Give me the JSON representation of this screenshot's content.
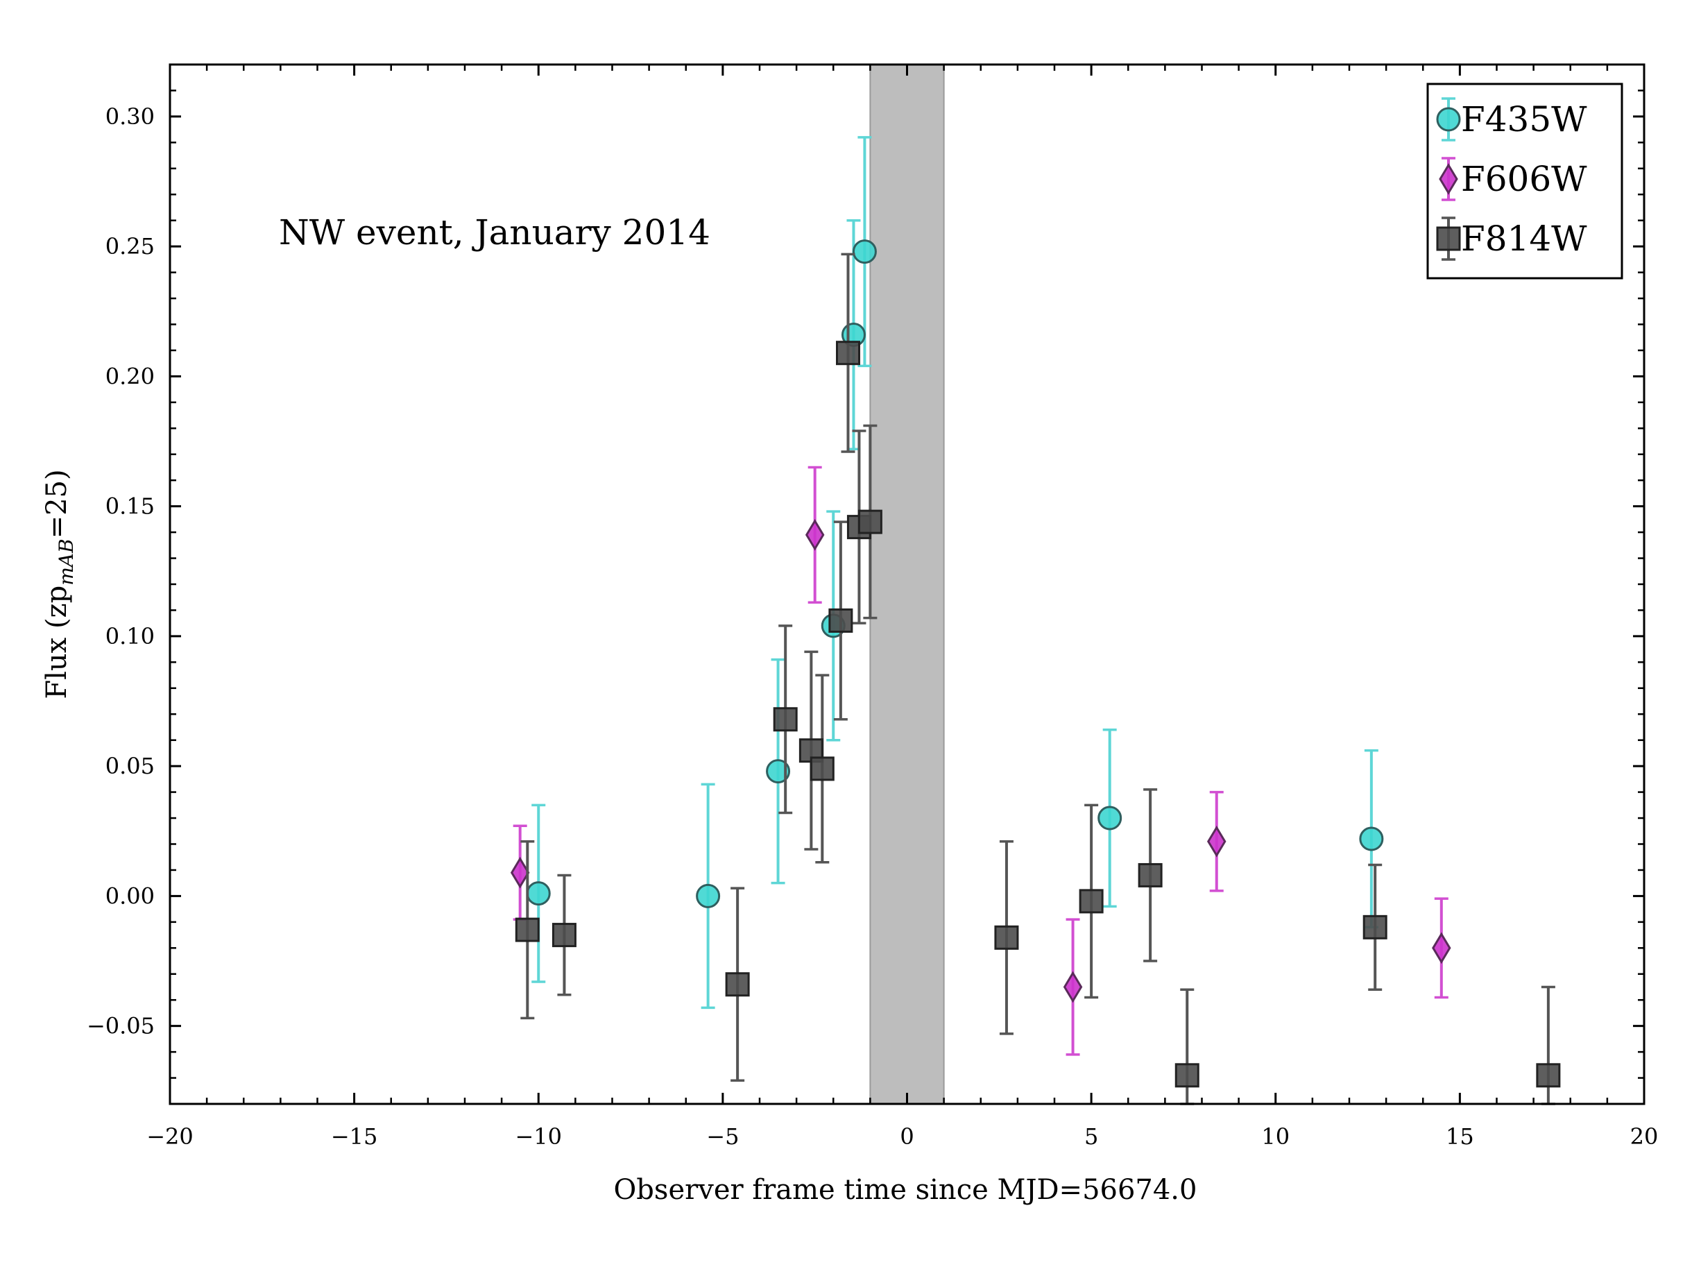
{
  "chart_data": {
    "type": "scatter",
    "title": "",
    "annotation": "NW event, January 2014",
    "xlabel": "Observer frame time since MJD=56674.0",
    "ylabel_main": "Flux (zp",
    "ylabel_sub": "mAB",
    "ylabel_tail": "=25)",
    "xlim": [
      -20,
      20
    ],
    "ylim": [
      -0.08,
      0.32
    ],
    "x_ticks": [
      -20,
      -15,
      -10,
      -5,
      0,
      5,
      10,
      15,
      20
    ],
    "x_tick_labels": [
      "−20",
      "−15",
      "−10",
      "−5",
      "0",
      "5",
      "10",
      "15",
      "20"
    ],
    "y_ticks": [
      -0.05,
      0.0,
      0.05,
      0.1,
      0.15,
      0.2,
      0.25,
      0.3
    ],
    "y_tick_labels": [
      "−0.05",
      "0.00",
      "0.05",
      "0.10",
      "0.15",
      "0.20",
      "0.25",
      "0.30"
    ],
    "grid": false,
    "legend_position": "top-right",
    "shaded_band": {
      "x_start": -1.0,
      "x_end": 1.0,
      "color": "#bdbdbd"
    },
    "series": [
      {
        "name": "F435W",
        "marker": "circle",
        "color": "#3dd6d0",
        "errcolor": "#5ed6d6",
        "points": [
          {
            "x": -10.0,
            "y": 0.001,
            "err": 0.034
          },
          {
            "x": -5.4,
            "y": 0.0,
            "err": 0.043
          },
          {
            "x": -3.5,
            "y": 0.048,
            "err": 0.043
          },
          {
            "x": -2.0,
            "y": 0.104,
            "err": 0.044
          },
          {
            "x": -1.45,
            "y": 0.216,
            "err": 0.044
          },
          {
            "x": -1.15,
            "y": 0.248,
            "err": 0.044
          },
          {
            "x": 5.5,
            "y": 0.03,
            "err": 0.034
          },
          {
            "x": 12.6,
            "y": 0.022,
            "err": 0.034
          }
        ]
      },
      {
        "name": "F606W",
        "marker": "diamond",
        "color": "#cc33cc",
        "errcolor": "#d24fd2",
        "points": [
          {
            "x": -10.5,
            "y": 0.009,
            "err": 0.018
          },
          {
            "x": -2.5,
            "y": 0.139,
            "err": 0.026
          },
          {
            "x": 4.5,
            "y": -0.035,
            "err": 0.026
          },
          {
            "x": 8.4,
            "y": 0.021,
            "err": 0.019
          },
          {
            "x": 14.5,
            "y": -0.02,
            "err": 0.019
          }
        ]
      },
      {
        "name": "F814W",
        "marker": "square",
        "color": "#4d4d4d",
        "errcolor": "#555555",
        "points": [
          {
            "x": -10.3,
            "y": -0.013,
            "err": 0.034
          },
          {
            "x": -9.3,
            "y": -0.015,
            "err": 0.023
          },
          {
            "x": -4.6,
            "y": -0.034,
            "err": 0.037
          },
          {
            "x": -3.3,
            "y": 0.068,
            "err": 0.036
          },
          {
            "x": -2.6,
            "y": 0.056,
            "err": 0.038
          },
          {
            "x": -2.3,
            "y": 0.049,
            "err": 0.036
          },
          {
            "x": -1.8,
            "y": 0.106,
            "err": 0.038
          },
          {
            "x": -1.6,
            "y": 0.209,
            "err": 0.038
          },
          {
            "x": -1.3,
            "y": 0.142,
            "err": 0.037
          },
          {
            "x": -1.0,
            "y": 0.144,
            "err": 0.037
          },
          {
            "x": 2.7,
            "y": -0.016,
            "err": 0.037
          },
          {
            "x": 5.0,
            "y": -0.002,
            "err": 0.037
          },
          {
            "x": 6.6,
            "y": 0.008,
            "err": 0.033
          },
          {
            "x": 7.6,
            "y": -0.069,
            "err": 0.033
          },
          {
            "x": 12.7,
            "y": -0.012,
            "err": 0.024
          },
          {
            "x": 17.4,
            "y": -0.069,
            "err": 0.034
          }
        ]
      }
    ]
  }
}
